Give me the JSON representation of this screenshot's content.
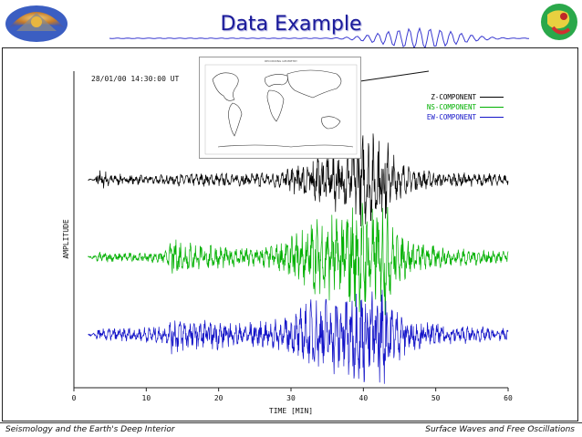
{
  "slide": {
    "title": "Data Example",
    "date": "28/01/00  14:30:00 UT",
    "footer_left": "Seismology and the Earth's Deep Interior",
    "footer_right": "Surface Waves and Free Oscillations"
  },
  "map": {
    "caption": "RECORDING GEOMETRY"
  },
  "chart_data": {
    "type": "line",
    "xlabel": "TIME [MIN]",
    "ylabel": "AMPLITUDE",
    "xlim": [
      0,
      60
    ],
    "xticks": [
      0,
      10,
      20,
      30,
      40,
      50,
      60
    ],
    "grid": false,
    "legend_placement": "top-right",
    "series": [
      {
        "name": "Z-COMPONENT",
        "color": "#000000",
        "offset": 3,
        "envelope": [
          [
            0,
            0.02
          ],
          [
            3,
            0.05
          ],
          [
            3.2,
            0.6
          ],
          [
            5,
            0.3
          ],
          [
            7,
            0.25
          ],
          [
            10,
            0.2
          ],
          [
            13,
            0.25
          ],
          [
            17,
            0.3
          ],
          [
            24,
            0.3
          ],
          [
            29,
            0.4
          ],
          [
            31,
            0.9
          ],
          [
            35,
            1.2
          ],
          [
            38,
            1.7
          ],
          [
            40,
            2.1
          ],
          [
            42,
            2.0
          ],
          [
            43,
            2.2
          ],
          [
            44,
            1.2
          ],
          [
            46,
            0.6
          ],
          [
            50,
            0.35
          ],
          [
            55,
            0.3
          ],
          [
            60,
            0.25
          ]
        ]
      },
      {
        "name": "NS-COMPONENT",
        "color": "#00b000",
        "offset": 2,
        "envelope": [
          [
            0,
            0.02
          ],
          [
            3,
            0.08
          ],
          [
            3.2,
            0.25
          ],
          [
            9,
            0.2
          ],
          [
            13,
            0.3
          ],
          [
            13.5,
            0.9
          ],
          [
            17,
            0.6
          ],
          [
            22,
            0.45
          ],
          [
            27,
            0.5
          ],
          [
            30,
            0.9
          ],
          [
            33,
            1.7
          ],
          [
            36,
            2.0
          ],
          [
            39,
            2.5
          ],
          [
            42,
            2.4
          ],
          [
            43,
            2.6
          ],
          [
            44,
            1.4
          ],
          [
            47,
            0.7
          ],
          [
            52,
            0.4
          ],
          [
            56,
            0.35
          ],
          [
            60,
            0.3
          ]
        ]
      },
      {
        "name": "EW-COMPONENT",
        "color": "#1414c8",
        "offset": 1,
        "envelope": [
          [
            0,
            0.02
          ],
          [
            3,
            0.08
          ],
          [
            3.2,
            0.3
          ],
          [
            9,
            0.35
          ],
          [
            13,
            0.4
          ],
          [
            13.5,
            0.9
          ],
          [
            17,
            0.75
          ],
          [
            22,
            0.6
          ],
          [
            27,
            0.6
          ],
          [
            30,
            0.9
          ],
          [
            33,
            1.6
          ],
          [
            36,
            1.9
          ],
          [
            39,
            2.1
          ],
          [
            42,
            2.3
          ],
          [
            43,
            2.2
          ],
          [
            44,
            1.3
          ],
          [
            47,
            0.7
          ],
          [
            52,
            0.45
          ],
          [
            56,
            0.35
          ],
          [
            60,
            0.3
          ]
        ]
      }
    ]
  }
}
